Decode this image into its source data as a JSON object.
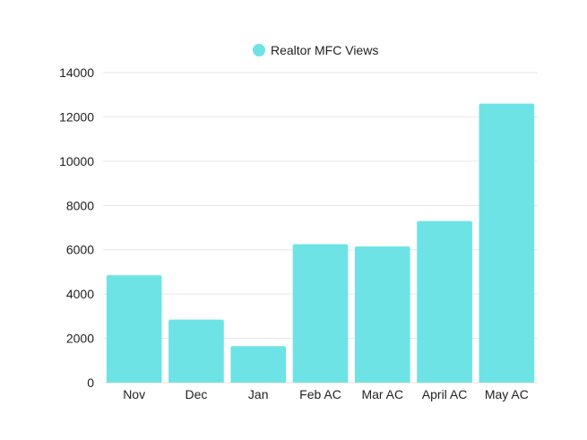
{
  "chart_data": {
    "type": "bar",
    "title": "",
    "xlabel": "",
    "ylabel": "",
    "categories": [
      "Nov",
      "Dec",
      "Jan",
      "Feb AC",
      "Mar AC",
      "April AC",
      "May AC"
    ],
    "series": [
      {
        "name": "Realtor MFC Views",
        "values": [
          4850,
          2850,
          1650,
          6250,
          6150,
          7300,
          12600
        ],
        "color": "#6ee3e6"
      }
    ],
    "ylim": [
      0,
      14000
    ],
    "yticks": [
      0,
      2000,
      4000,
      6000,
      8000,
      10000,
      12000,
      14000
    ],
    "grid": true,
    "legend_position": "top-center"
  }
}
